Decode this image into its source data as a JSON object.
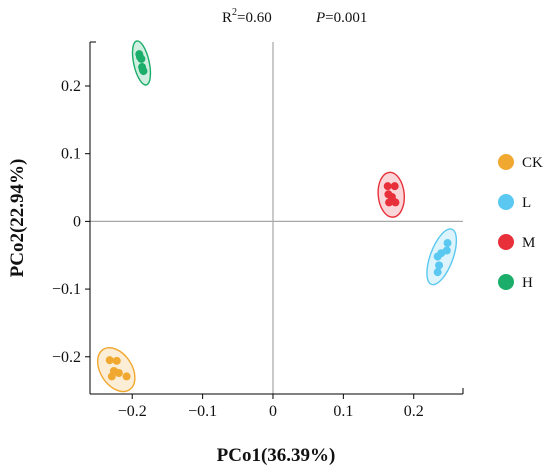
{
  "chart_data": {
    "type": "scatter",
    "annotation": {
      "r2": "0.60",
      "p": "0.001"
    },
    "xlabel": "PCo1(36.39%)",
    "ylabel": "PCo2(22.94%)",
    "xlim": [
      -0.26,
      0.27
    ],
    "ylim": [
      -0.255,
      0.265
    ],
    "xticks": [
      {
        "v": -0.2,
        "label": "−0.2"
      },
      {
        "v": -0.1,
        "label": "−0.1"
      },
      {
        "v": 0,
        "label": "0"
      },
      {
        "v": 0.1,
        "label": "0.1"
      },
      {
        "v": 0.2,
        "label": "0.2"
      }
    ],
    "yticks": [
      {
        "v": 0.2,
        "label": "0.2"
      },
      {
        "v": 0.1,
        "label": "0.1"
      },
      {
        "v": 0,
        "label": "0"
      },
      {
        "v": -0.1,
        "label": "−0.1"
      },
      {
        "v": -0.2,
        "label": "−0.2"
      }
    ],
    "zero_lines": true,
    "legend_position": "right",
    "series": [
      {
        "name": "CK",
        "color": "#F0A830",
        "points": [
          [
            -0.232,
            -0.205
          ],
          [
            -0.222,
            -0.206
          ],
          [
            -0.226,
            -0.221
          ],
          [
            -0.229,
            -0.229
          ],
          [
            -0.219,
            -0.224
          ],
          [
            -0.208,
            -0.229
          ]
        ]
      },
      {
        "name": "L",
        "color": "#5AC8F0",
        "points": [
          [
            0.248,
            -0.032
          ],
          [
            0.247,
            -0.043
          ],
          [
            0.239,
            -0.047
          ],
          [
            0.234,
            -0.052
          ],
          [
            0.236,
            -0.065
          ],
          [
            0.234,
            -0.075
          ]
        ]
      },
      {
        "name": "M",
        "color": "#E8303A",
        "points": [
          [
            0.163,
            0.052
          ],
          [
            0.173,
            0.052
          ],
          [
            0.164,
            0.04
          ],
          [
            0.169,
            0.036
          ],
          [
            0.165,
            0.028
          ],
          [
            0.174,
            0.028
          ]
        ]
      },
      {
        "name": "H",
        "color": "#1AAE6A",
        "points": [
          [
            -0.19,
            0.247
          ],
          [
            -0.189,
            0.243
          ],
          [
            -0.187,
            0.24
          ],
          [
            -0.186,
            0.228
          ],
          [
            -0.185,
            0.224
          ],
          [
            -0.184,
            0.222
          ]
        ]
      }
    ]
  }
}
